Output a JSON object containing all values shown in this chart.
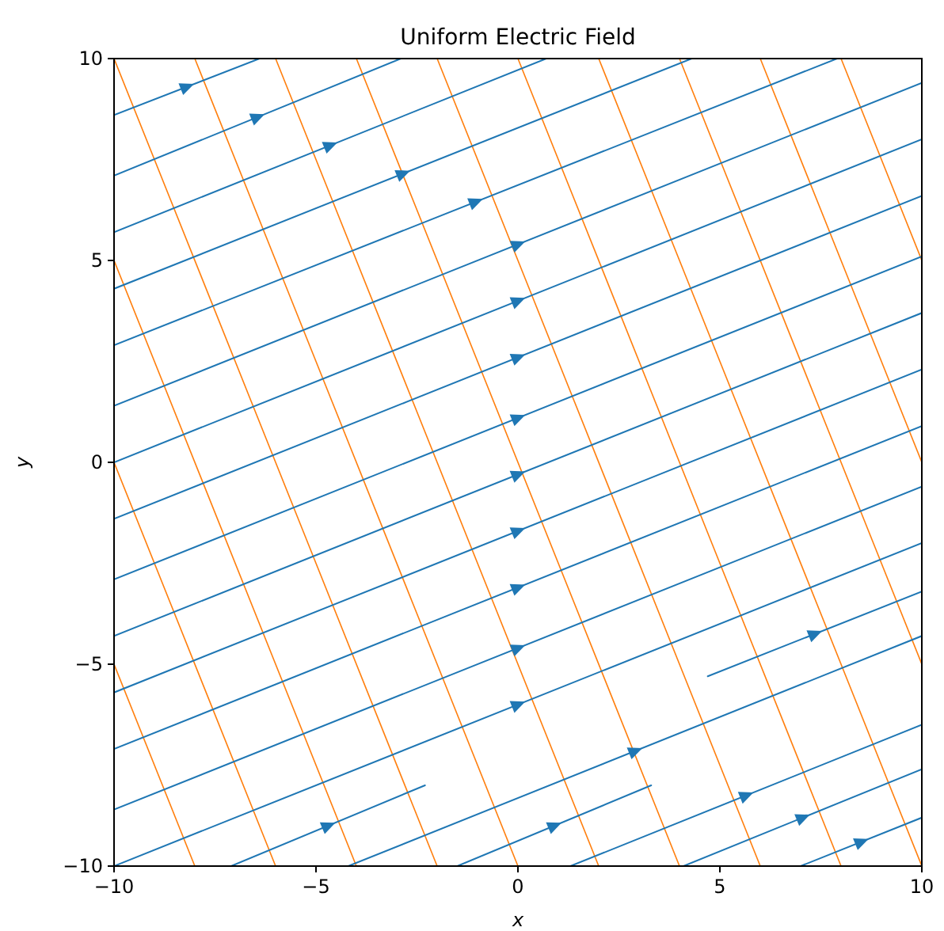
{
  "chart_data": {
    "type": "line",
    "title": "Uniform Electric Field",
    "xlabel": "x",
    "ylabel": "y",
    "xlim": [
      -10,
      10
    ],
    "ylim": [
      -10,
      10
    ],
    "xticks": [
      {
        "value": -10,
        "label": "−10"
      },
      {
        "value": -5,
        "label": "−5"
      },
      0,
      5,
      10
    ],
    "yticks": [
      {
        "value": -10,
        "label": "−10"
      },
      {
        "value": -5,
        "label": "−5"
      },
      0,
      5,
      10
    ],
    "grid": false,
    "marker": "none",
    "line_style": "solid",
    "series": [
      {
        "color": "#ff7f0e",
        "x": [
          -8,
          -10
        ],
        "values": [
          -10,
          -5
        ]
      },
      {
        "color": "#ff7f0e",
        "x": [
          -6,
          -10
        ],
        "values": [
          -10,
          0
        ]
      },
      {
        "color": "#ff7f0e",
        "x": [
          -4,
          -10
        ],
        "values": [
          -10,
          5
        ]
      },
      {
        "color": "#ff7f0e",
        "x": [
          -2,
          -10
        ],
        "values": [
          -10,
          10
        ]
      },
      {
        "color": "#ff7f0e",
        "x": [
          0,
          -8
        ],
        "values": [
          -10,
          10
        ]
      },
      {
        "color": "#ff7f0e",
        "x": [
          2,
          -6
        ],
        "values": [
          -10,
          10
        ]
      },
      {
        "color": "#ff7f0e",
        "x": [
          4,
          -4
        ],
        "values": [
          -10,
          10
        ]
      },
      {
        "color": "#ff7f0e",
        "x": [
          6,
          -2
        ],
        "values": [
          -10,
          10
        ]
      },
      {
        "color": "#ff7f0e",
        "x": [
          8,
          0
        ],
        "values": [
          -10,
          10
        ]
      },
      {
        "color": "#ff7f0e",
        "x": [
          10,
          2
        ],
        "values": [
          -10,
          10
        ]
      },
      {
        "color": "#ff7f0e",
        "x": [
          10,
          4
        ],
        "values": [
          -5,
          10
        ]
      },
      {
        "color": "#ff7f0e",
        "x": [
          10,
          6
        ],
        "values": [
          0,
          10
        ]
      },
      {
        "color": "#ff7f0e",
        "x": [
          10,
          8
        ],
        "values": [
          5,
          10
        ]
      },
      {
        "color": "#1f77b4",
        "x": [
          -10,
          -6.4
        ],
        "values": [
          8.6,
          10
        ]
      },
      {
        "color": "#1f77b4",
        "x": [
          -10,
          -2.9
        ],
        "values": [
          7.1,
          10
        ]
      },
      {
        "color": "#1f77b4",
        "x": [
          -10,
          0.7
        ],
        "values": [
          5.7,
          10
        ]
      },
      {
        "color": "#1f77b4",
        "x": [
          -10,
          4.3
        ],
        "values": [
          4.3,
          10
        ]
      },
      {
        "color": "#1f77b4",
        "x": [
          -10,
          7.9
        ],
        "values": [
          2.9,
          10
        ]
      },
      {
        "color": "#1f77b4",
        "x": [
          -10,
          10
        ],
        "values": [
          1.4,
          9.4
        ]
      },
      {
        "color": "#1f77b4",
        "x": [
          -10,
          10
        ],
        "values": [
          0,
          8
        ]
      },
      {
        "color": "#1f77b4",
        "x": [
          -10,
          10
        ],
        "values": [
          -1.4,
          6.6
        ]
      },
      {
        "color": "#1f77b4",
        "x": [
          -10,
          10
        ],
        "values": [
          -2.9,
          5.1
        ]
      },
      {
        "color": "#1f77b4",
        "x": [
          -10,
          10
        ],
        "values": [
          -4.3,
          3.7
        ]
      },
      {
        "color": "#1f77b4",
        "x": [
          -10,
          10
        ],
        "values": [
          -5.7,
          2.3
        ]
      },
      {
        "color": "#1f77b4",
        "x": [
          -10,
          10
        ],
        "values": [
          -7.1,
          0.9
        ]
      },
      {
        "color": "#1f77b4",
        "x": [
          -10,
          10
        ],
        "values": [
          -8.6,
          -0.6
        ]
      },
      {
        "color": "#1f77b4",
        "x": [
          -10,
          10
        ],
        "values": [
          -10,
          -2
        ]
      },
      {
        "color": "#1f77b4",
        "x": [
          -7.1,
          -2.3
        ],
        "values": [
          -10,
          -8
        ]
      },
      {
        "color": "#1f77b4",
        "x": [
          4.7,
          10
        ],
        "values": [
          -5.3,
          -3.2
        ]
      },
      {
        "color": "#1f77b4",
        "x": [
          -4.2,
          10
        ],
        "values": [
          -10,
          -4.3
        ]
      },
      {
        "color": "#1f77b4",
        "x": [
          -1.5,
          3.3
        ],
        "values": [
          -10,
          -8
        ]
      },
      {
        "color": "#1f77b4",
        "x": [
          1.3,
          10
        ],
        "values": [
          -10,
          -6.5
        ]
      },
      {
        "color": "#1f77b4",
        "x": [
          4.1,
          10
        ],
        "values": [
          -10,
          -7.6
        ]
      },
      {
        "color": "#1f77b4",
        "x": [
          7,
          10
        ],
        "values": [
          -10,
          -8.8
        ]
      }
    ]
  }
}
